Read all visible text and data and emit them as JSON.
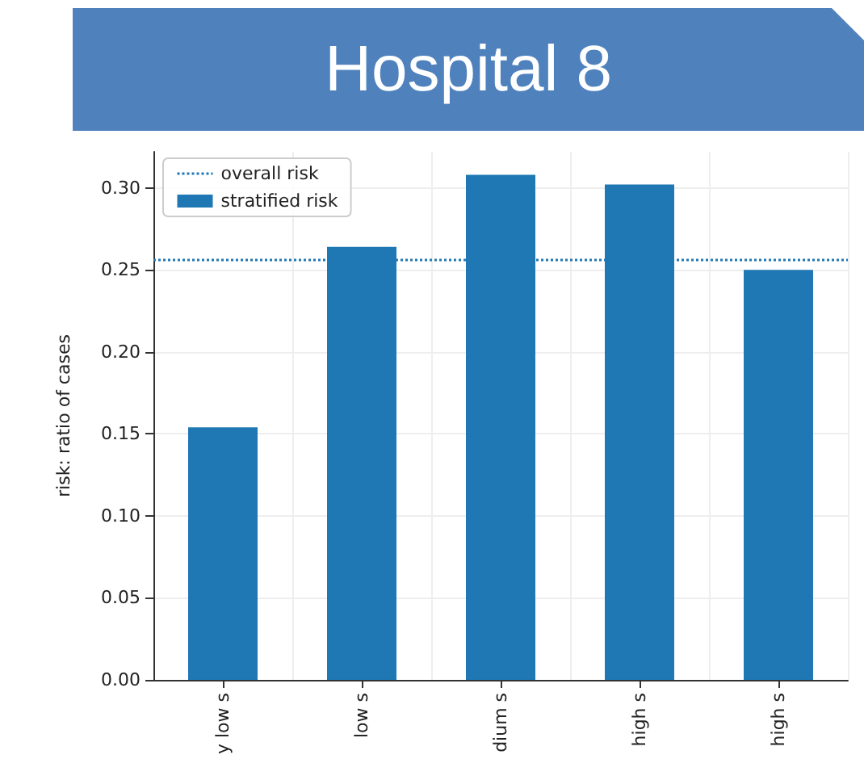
{
  "chart_data": {
    "type": "bar",
    "title": "Hospital 8",
    "ylabel": "risk: ratio of cases",
    "categories": [
      "y low s",
      "low s",
      "dium s",
      "high s",
      "high s"
    ],
    "series": [
      {
        "name": "stratified risk",
        "color": "#1f77b4",
        "values": [
          0.154,
          0.264,
          0.308,
          0.302,
          0.25
        ]
      }
    ],
    "ylim": [
      0,
      0.322
    ],
    "yticks": [
      {
        "value": 0,
        "label": "0.00"
      },
      {
        "value": 0.05,
        "label": "0.05"
      },
      {
        "value": 0.1,
        "label": "0.10"
      },
      {
        "value": 0.15,
        "label": "0.15"
      },
      {
        "value": 0.2,
        "label": "0.20"
      },
      {
        "value": 0.25,
        "label": "0.25"
      },
      {
        "value": 0.3,
        "label": "0.30"
      }
    ],
    "ref_lines": [
      {
        "axis": "y",
        "value": 0.256,
        "label": "overall risk",
        "color": "#1f77b4",
        "line_style": "dotted"
      }
    ],
    "grid": true,
    "legend": "top left"
  }
}
